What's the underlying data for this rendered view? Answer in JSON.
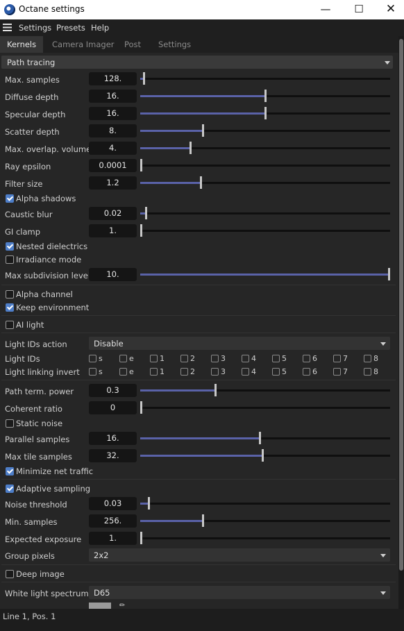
{
  "window": {
    "title": "Octane settings"
  },
  "menu": [
    "Settings",
    "Presets",
    "Help"
  ],
  "tabs": [
    "Kernels",
    "Camera Imager",
    "Post",
    "Settings"
  ],
  "kernel": {
    "selected": "Path tracing"
  },
  "params": {
    "max_samples": {
      "label": "Max. samples",
      "value": "128.",
      "level": 0.01
    },
    "diffuse_depth": {
      "label": "Diffuse depth",
      "value": "16.",
      "level": 0.5
    },
    "specular_depth": {
      "label": "Specular depth",
      "value": "16.",
      "level": 0.5
    },
    "scatter_depth": {
      "label": "Scatter depth",
      "value": "8.",
      "level": 0.25
    },
    "max_overlap_volumes": {
      "label": "Max. overlap. volumes",
      "value": "4.",
      "level": 0.2
    },
    "ray_epsilon": {
      "label": "Ray epsilon",
      "value": "0.0001",
      "level": 0.0
    },
    "filter_size": {
      "label": "Filter size",
      "value": "1.2",
      "level": 0.24
    },
    "caustic_blur": {
      "label": "Caustic blur",
      "value": "0.02",
      "level": 0.02
    },
    "gi_clamp": {
      "label": "GI clamp",
      "value": "1.",
      "level": 0.0
    },
    "max_subdivision_level": {
      "label": "Max subdivision level",
      "value": "10.",
      "level": 1.0
    },
    "path_term_power": {
      "label": "Path term. power",
      "value": "0.3",
      "level": 0.3
    },
    "coherent_ratio": {
      "label": "Coherent ratio",
      "value": "0",
      "level": 0.0
    },
    "parallel_samples": {
      "label": "Parallel samples",
      "value": "16.",
      "level": 0.48
    },
    "max_tile_samples": {
      "label": "Max tile samples",
      "value": "32.",
      "level": 0.49
    },
    "noise_threshold": {
      "label": "Noise threshold",
      "value": "0.03",
      "level": 0.03
    },
    "min_samples": {
      "label": "Min. samples",
      "value": "256.",
      "level": 0.25
    },
    "expected_exposure": {
      "label": "Expected exposure",
      "value": "1.",
      "level": 0.0
    }
  },
  "checks": {
    "alpha_shadows": {
      "label": "Alpha shadows",
      "checked": true
    },
    "nested_dielectrics": {
      "label": "Nested dielectrics",
      "checked": true
    },
    "irradiance_mode": {
      "label": "Irradiance mode",
      "checked": false
    },
    "alpha_channel": {
      "label": "Alpha channel",
      "checked": false
    },
    "keep_environment": {
      "label": "Keep environment",
      "checked": true
    },
    "ai_light": {
      "label": "AI light",
      "checked": false
    },
    "static_noise": {
      "label": "Static noise",
      "checked": false
    },
    "minimize_net_traffic": {
      "label": "Minimize net traffic",
      "checked": true
    },
    "adaptive_sampling": {
      "label": "Adaptive sampling",
      "checked": true
    },
    "deep_image": {
      "label": "Deep image",
      "checked": false
    }
  },
  "light_ids_action": {
    "label": "Light IDs action",
    "value": "Disable"
  },
  "light_ids": {
    "label": "Light IDs",
    "items": [
      "s",
      "e",
      "1",
      "2",
      "3",
      "4",
      "5",
      "6",
      "7",
      "8"
    ]
  },
  "light_linking_invert": {
    "label": "Light linking invert",
    "items": [
      "s",
      "e",
      "1",
      "2",
      "3",
      "4",
      "5",
      "6",
      "7",
      "8"
    ]
  },
  "group_pixels": {
    "label": "Group pixels",
    "value": "2x2"
  },
  "white_light_spectrum": {
    "label": "White light spectrum",
    "value": "D65"
  },
  "status": {
    "text": "Line 1, Pos. 1"
  }
}
